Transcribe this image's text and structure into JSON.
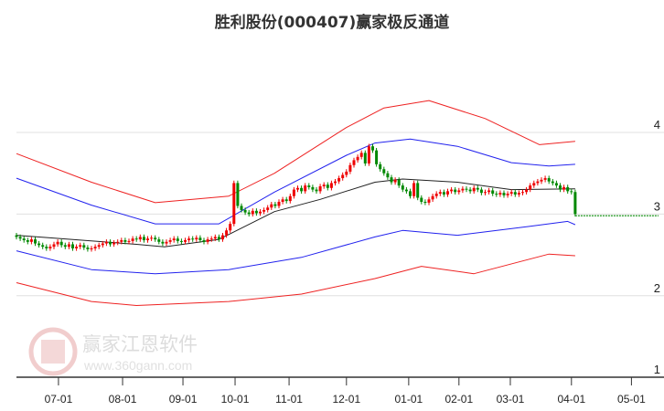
{
  "chart_data": {
    "type": "candlestick",
    "title": "胜利股份(000407)赢家极反通道",
    "ylim": [
      1,
      4
    ],
    "yticks": [
      "1",
      "2",
      "3",
      "4"
    ],
    "xticks": [
      {
        "label": "07-01",
        "index": 11.2
      },
      {
        "label": "08-01",
        "index": 28.3
      },
      {
        "label": "09-01",
        "index": 44.4
      },
      {
        "label": "10-01",
        "index": 58.3
      },
      {
        "label": "11-01",
        "index": 72.7
      },
      {
        "label": "12-01",
        "index": 88
      },
      {
        "label": "01-01",
        "index": 104.6
      },
      {
        "label": "02-01",
        "index": 118
      },
      {
        "label": "03-01",
        "index": 131.7
      },
      {
        "label": "04-01",
        "index": 148
      },
      {
        "label": "05-01",
        "index": 164
      }
    ],
    "closes": [
      2.72,
      2.7,
      2.68,
      2.66,
      2.69,
      2.64,
      2.62,
      2.6,
      2.58,
      2.6,
      2.63,
      2.66,
      2.62,
      2.6,
      2.63,
      2.58,
      2.6,
      2.62,
      2.59,
      2.57,
      2.58,
      2.6,
      2.62,
      2.64,
      2.66,
      2.63,
      2.65,
      2.66,
      2.68,
      2.66,
      2.67,
      2.7,
      2.69,
      2.72,
      2.68,
      2.7,
      2.71,
      2.69,
      2.66,
      2.64,
      2.66,
      2.68,
      2.7,
      2.67,
      2.66,
      2.68,
      2.7,
      2.69,
      2.71,
      2.68,
      2.66,
      2.69,
      2.7,
      2.72,
      2.69,
      2.74,
      2.8,
      2.88,
      3.38,
      3.1,
      3.05,
      3.02,
      3.0,
      3.04,
      3.01,
      3.03,
      3.05,
      3.08,
      3.12,
      3.1,
      3.15,
      3.18,
      3.16,
      3.22,
      3.3,
      3.32,
      3.28,
      3.35,
      3.33,
      3.3,
      3.28,
      3.34,
      3.36,
      3.32,
      3.38,
      3.4,
      3.44,
      3.48,
      3.52,
      3.6,
      3.66,
      3.7,
      3.75,
      3.62,
      3.83,
      3.78,
      3.61,
      3.55,
      3.5,
      3.45,
      3.39,
      3.42,
      3.35,
      3.3,
      3.28,
      3.22,
      3.38,
      3.2,
      3.15,
      3.14,
      3.18,
      3.22,
      3.25,
      3.27,
      3.24,
      3.28,
      3.3,
      3.27,
      3.29,
      3.31,
      3.3,
      3.28,
      3.32,
      3.3,
      3.26,
      3.27,
      3.29,
      3.25,
      3.24,
      3.26,
      3.23,
      3.25,
      3.27,
      3.24,
      3.26,
      3.27,
      3.3,
      3.35,
      3.38,
      3.4,
      3.42,
      3.44,
      3.4,
      3.38,
      3.35,
      3.3,
      3.33,
      3.28,
      3.27,
      3.0
    ],
    "projection_level": 2.98,
    "bands": [
      {
        "name": "middle",
        "color": "#222222",
        "points": [
          [
            0,
            2.74
          ],
          [
            32,
            2.63
          ],
          [
            39.5,
            2.6
          ],
          [
            54,
            2.69
          ],
          [
            68.8,
            3.03
          ],
          [
            81,
            3.18
          ],
          [
            95.6,
            3.39
          ],
          [
            103,
            3.43
          ],
          [
            117.6,
            3.39
          ],
          [
            132,
            3.3
          ],
          [
            149,
            3.31
          ]
        ]
      },
      {
        "name": "inner-upper",
        "color": "#2222ee",
        "points": [
          [
            0,
            3.44
          ],
          [
            20,
            3.11
          ],
          [
            37,
            2.88
          ],
          [
            54,
            2.88
          ],
          [
            68.8,
            3.27
          ],
          [
            88,
            3.72
          ],
          [
            95.6,
            3.87
          ],
          [
            105,
            3.92
          ],
          [
            117.6,
            3.83
          ],
          [
            132,
            3.63
          ],
          [
            142,
            3.59
          ],
          [
            149,
            3.61
          ]
        ]
      },
      {
        "name": "inner-lower",
        "color": "#2222ee",
        "points": [
          [
            0,
            2.55
          ],
          [
            20,
            2.32
          ],
          [
            37,
            2.27
          ],
          [
            56.6,
            2.32
          ],
          [
            76,
            2.47
          ],
          [
            95.6,
            2.72
          ],
          [
            103,
            2.8
          ],
          [
            117.6,
            2.74
          ],
          [
            137,
            2.85
          ],
          [
            147,
            2.91
          ],
          [
            149,
            2.87
          ]
        ]
      },
      {
        "name": "outer-upper",
        "color": "#ee2222",
        "points": [
          [
            0,
            3.74
          ],
          [
            20,
            3.39
          ],
          [
            37,
            3.14
          ],
          [
            56.6,
            3.22
          ],
          [
            68.8,
            3.5
          ],
          [
            88,
            4.06
          ],
          [
            98,
            4.3
          ],
          [
            110,
            4.39
          ],
          [
            125,
            4.17
          ],
          [
            139.5,
            3.85
          ],
          [
            149,
            3.89
          ]
        ]
      },
      {
        "name": "outer-lower",
        "color": "#ee2222",
        "points": [
          [
            0,
            2.16
          ],
          [
            20,
            1.93
          ],
          [
            32,
            1.88
          ],
          [
            56.6,
            1.93
          ],
          [
            76,
            2.02
          ],
          [
            95.6,
            2.21
          ],
          [
            108,
            2.36
          ],
          [
            122,
            2.27
          ],
          [
            142,
            2.51
          ],
          [
            149,
            2.49
          ]
        ]
      }
    ],
    "colors": {
      "up": "#ee0000",
      "down": "#008800",
      "grid": "#e0e0e0"
    }
  },
  "watermark": {
    "name": "赢家江恩软件",
    "url": "www.360gann.com",
    "seal": "江赢恩家"
  }
}
